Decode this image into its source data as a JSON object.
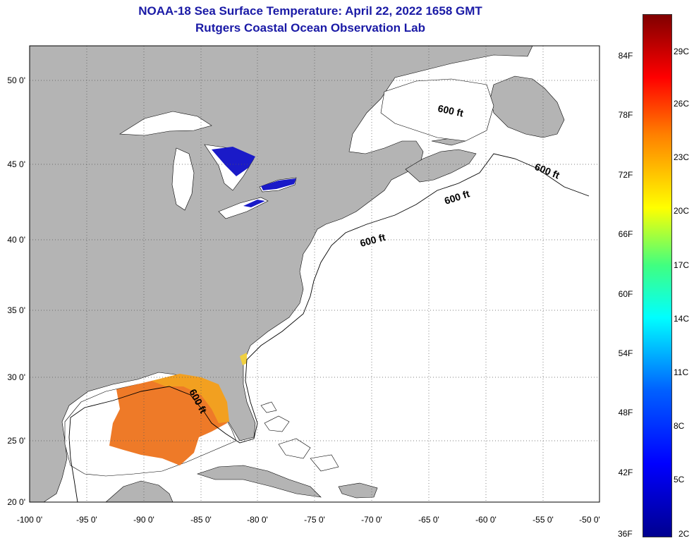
{
  "header": {
    "title": "NOAA-18 Sea Surface Temperature:  April 22, 2022 1658 GMT",
    "subtitle": "Rutgers Coastal Ocean Observation Lab"
  },
  "map": {
    "lat_ticks": [
      "50 0'",
      "45 0'",
      "40 0'",
      "35 0'",
      "30 0'",
      "25 0'",
      "20 0'"
    ],
    "lon_ticks": [
      "-100 0'",
      "-95 0'",
      "-90 0'",
      "-85 0'",
      "-80 0'",
      "-75 0'",
      "-70 0'",
      "-65 0'",
      "-60 0'",
      "-55 0'",
      "-50 0'"
    ],
    "contour_label": "600 ft",
    "colors": {
      "land": "#b4b4b4",
      "ocean": "#ffffff",
      "great_lakes_sst": "#1a1ac8",
      "gulf_sst": "#ee7a28",
      "gulf_shelf_sst": "#f2a020"
    }
  },
  "colorbar": {
    "fahrenheit": [
      "84F",
      "78F",
      "72F",
      "66F",
      "60F",
      "54F",
      "48F",
      "42F",
      "36F"
    ],
    "celsius": [
      "29C",
      "26C",
      "23C",
      "20C",
      "17C",
      "14C",
      "11C",
      "8C",
      "5C",
      "2C"
    ]
  }
}
